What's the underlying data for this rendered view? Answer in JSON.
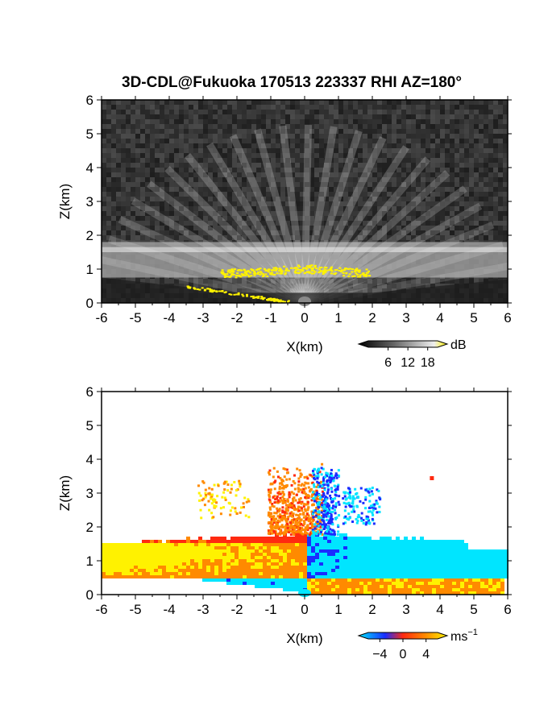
{
  "figure_title": "3D-CDL@Fukuoka 170513 223337 RHI AZ=180°",
  "chart_data": [
    {
      "type": "heatmap",
      "panel": "backscatter intensity",
      "xlabel": "X(km)",
      "ylabel": "Z(km)",
      "xlim": [
        -6,
        6
      ],
      "ylim": [
        0,
        6
      ],
      "x_ticks": [
        "-6",
        "-5",
        "-4",
        "-3",
        "-2",
        "-1",
        "0",
        "1",
        "2",
        "3",
        "4",
        "5",
        "6"
      ],
      "y_ticks": [
        "0",
        "1",
        "2",
        "3",
        "4",
        "5",
        "6"
      ],
      "colorbar": {
        "unit": "dB",
        "ticks": [
          "6",
          "12",
          "18"
        ],
        "range": [
          0,
          21
        ],
        "colormap": "grayscale with yellow saturation"
      },
      "features": {
        "boundary_layer_top_km": [
          1.3,
          1.8
        ],
        "saturated_band": {
          "x_range_km": [
            -2.5,
            1.9
          ],
          "z_km": 0.9
        },
        "low_level_saturated_slant": {
          "x_range_km": [
            -3.5,
            -0.5
          ],
          "z_range_km": [
            0.5,
            0.05
          ]
        }
      }
    },
    {
      "type": "heatmap",
      "panel": "radial velocity",
      "xlabel": "X(km)",
      "ylabel": "Z(km)",
      "xlim": [
        -6,
        6
      ],
      "ylim": [
        0,
        6
      ],
      "x_ticks": [
        "-6",
        "-5",
        "-4",
        "-3",
        "-2",
        "-1",
        "0",
        "1",
        "2",
        "3",
        "4",
        "5",
        "6"
      ],
      "y_ticks": [
        "0",
        "1",
        "2",
        "3",
        "4",
        "5",
        "6"
      ],
      "colorbar": {
        "unit": "ms",
        "unit_exponent": "−1",
        "ticks": [
          "−4",
          "0",
          "4"
        ],
        "range": [
          -6,
          6
        ],
        "colormap": "cyan-blue-red-yellow"
      },
      "features": {
        "left_side_velocity_ms": 4,
        "right_side_velocity_ms": -4,
        "layer_top_km": 1.9,
        "plume_top_km": 3.9
      }
    }
  ],
  "colors": {
    "cyan": "#00e5ff",
    "blue": "#1a2cff",
    "red": "#ff2a10",
    "orange": "#ff8a00",
    "yellow": "#fff200"
  }
}
